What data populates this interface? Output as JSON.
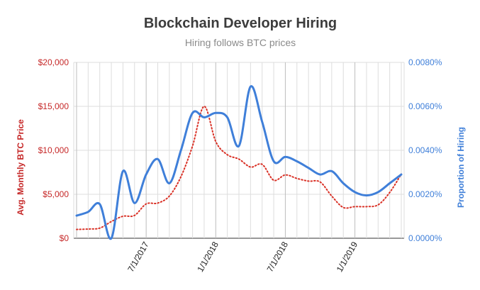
{
  "chart_data": {
    "type": "line",
    "title": "Blockchain Developer Hiring",
    "subtitle": "Hiring follows BTC prices",
    "ylabel_left": "Avg. Monthly BTC Price",
    "ylabel_right": "Proportion of Hiring",
    "left_ticks": [
      "$20,000",
      "$15,000",
      "$10,000",
      "$5,000",
      "$0"
    ],
    "right_ticks": [
      "0.0080%",
      "0.0060%",
      "0.0040%",
      "0.0020%",
      "0.0000%"
    ],
    "x_ticks": [
      "7/1/2017",
      "1/1/2018",
      "7/1/2018",
      "1/1/2019"
    ],
    "ylim_left": [
      0,
      20000
    ],
    "ylim_right": [
      0,
      0.008
    ],
    "grid": true,
    "legend": "none",
    "colors": {
      "btc": "#d93025",
      "hiring": "#3f7fd9",
      "grid": "#dddddd"
    },
    "x": [
      "2017-01",
      "2017-02",
      "2017-03",
      "2017-04",
      "2017-05",
      "2017-06",
      "2017-07",
      "2017-08",
      "2017-09",
      "2017-10",
      "2017-11",
      "2017-12",
      "2018-01",
      "2018-02",
      "2018-03",
      "2018-04",
      "2018-05",
      "2018-06",
      "2018-07",
      "2018-08",
      "2018-09",
      "2018-10",
      "2018-11",
      "2018-12",
      "2019-01",
      "2019-02",
      "2019-03",
      "2019-04",
      "2019-05"
    ],
    "series": [
      {
        "axis": "left",
        "style": "dotted",
        "values": [
          1000,
          1050,
          1150,
          1900,
          2500,
          2600,
          3900,
          4000,
          4800,
          7000,
          10500,
          15000,
          11000,
          9500,
          9000,
          8100,
          8400,
          6600,
          7200,
          6800,
          6500,
          6400,
          4800,
          3500,
          3600,
          3600,
          3800,
          5200,
          7300
        ]
      },
      {
        "axis": "right",
        "style": "solid",
        "values": [
          0.00103,
          0.0012,
          0.00155,
          0.0,
          0.00305,
          0.0016,
          0.0029,
          0.0036,
          0.0025,
          0.004,
          0.0057,
          0.0055,
          0.0057,
          0.0055,
          0.0042,
          0.0069,
          0.0053,
          0.0035,
          0.0037,
          0.0035,
          0.0032,
          0.0029,
          0.00305,
          0.0025,
          0.0021,
          0.00195,
          0.0021,
          0.0025,
          0.0029
        ]
      }
    ]
  }
}
